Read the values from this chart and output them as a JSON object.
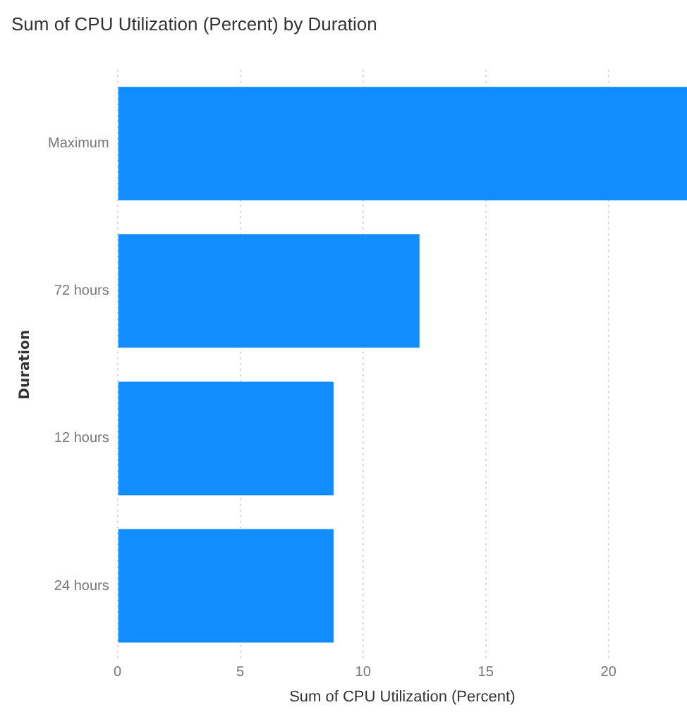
{
  "chart_data": {
    "type": "bar",
    "orientation": "horizontal",
    "title": "Sum of CPU Utilization (Percent) by Duration",
    "xlabel": "Sum of CPU Utilization (Percent)",
    "ylabel": "Duration",
    "categories": [
      "Maximum",
      "72 hours",
      "12 hours",
      "24 hours"
    ],
    "values": [
      23.2,
      12.3,
      8.8,
      8.8
    ],
    "color": "#118dff",
    "xlim": [
      0,
      23.2
    ],
    "xticks": [
      0,
      5,
      10,
      15,
      20
    ],
    "grid": "x",
    "legend": false
  }
}
